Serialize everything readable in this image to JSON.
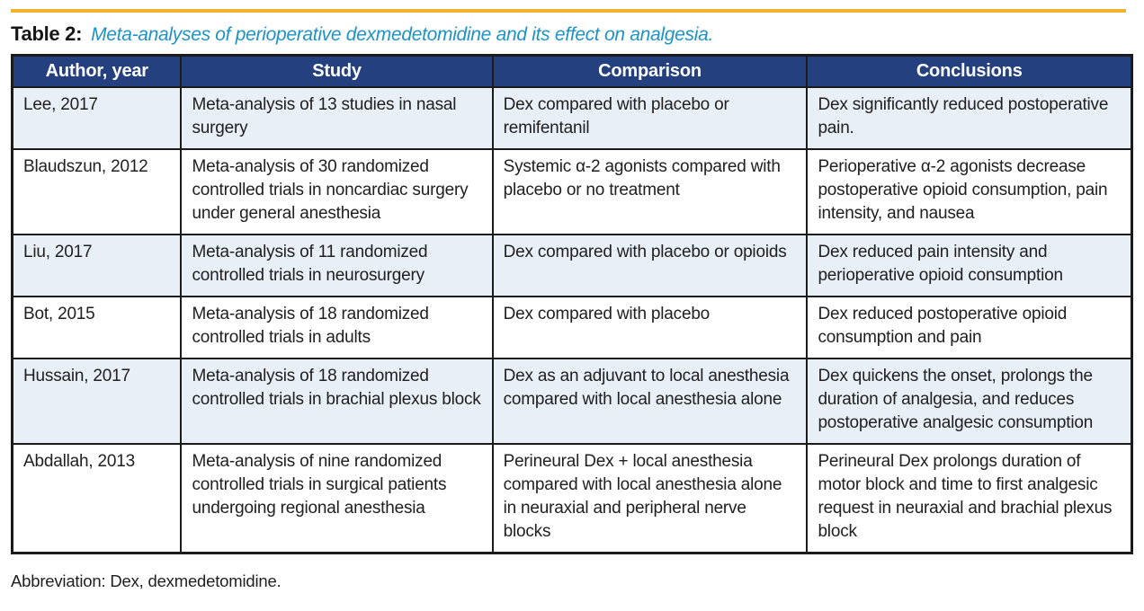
{
  "page": {
    "title_label": "Table 2:",
    "title_caption": "Meta-analyses of perioperative dexmedetomidine and its effect on analgesia.",
    "footnote": "Abbreviation: Dex, dexmedetomidine.",
    "accent_gold": "#EFB32C",
    "caption_blue": "#1E93C6",
    "header_navy": "#24407E",
    "row_alt_blue": "#E8EFF7"
  },
  "table": {
    "columns": [
      "Author, year",
      "Study",
      "Comparison",
      "Conclusions"
    ],
    "rows": [
      {
        "author": "Lee, 2017",
        "study": "Meta-analysis of 13 studies in nasal surgery",
        "comparison": "Dex compared with placebo or remifentanil",
        "conclusions": "Dex significantly reduced postoperative pain."
      },
      {
        "author": "Blaudszun, 2012",
        "study": "Meta-analysis of 30 randomized controlled trials in noncardiac surgery under general anesthesia",
        "comparison": "Systemic α-2 agonists compared with placebo or no treatment",
        "conclusions": "Perioperative α-2 agonists decrease postoperative opioid consumption, pain intensity, and nausea"
      },
      {
        "author": "Liu, 2017",
        "study": "Meta-analysis of 11 randomized controlled trials in neurosurgery",
        "comparison": "Dex compared with placebo or opioids",
        "conclusions": "Dex reduced pain intensity and perioperative opioid consumption"
      },
      {
        "author": "Bot, 2015",
        "study": "Meta-analysis of 18 randomized controlled trials in adults",
        "comparison": "Dex compared with placebo",
        "conclusions": "Dex reduced postoperative opioid consumption and pain"
      },
      {
        "author": "Hussain, 2017",
        "study": "Meta-analysis of 18 randomized controlled trials in brachial plexus block",
        "comparison": "Dex as an adjuvant to local anesthesia compared with local anesthesia alone",
        "conclusions": "Dex quickens the onset, prolongs the duration of analgesia, and reduces postoperative analgesic consumption"
      },
      {
        "author": "Abdallah, 2013",
        "study": "Meta-analysis of nine randomized controlled trials in surgical patients undergoing regional anesthesia",
        "comparison": "Perineural Dex + local anesthesia compared with local anesthesia alone in neuraxial and peripheral nerve blocks",
        "conclusions": "Perineural Dex prolongs duration of motor block and time to first analgesic request in neuraxial and brachial plexus block"
      }
    ]
  }
}
